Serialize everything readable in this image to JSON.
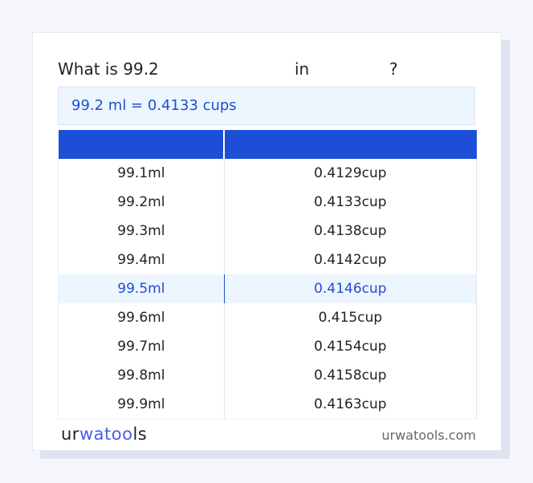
{
  "title": {
    "prefix": "What is 99.2",
    "middle": "in",
    "suffix": "?"
  },
  "summary": "99.2 ml = 0.4133 cups",
  "table": {
    "headers": [
      "",
      ""
    ],
    "rows": [
      [
        "99.1ml",
        "0.4129cup"
      ],
      [
        "99.2ml",
        "0.4133cup"
      ],
      [
        "99.3ml",
        "0.4138cup"
      ],
      [
        "99.4ml",
        "0.4142cup"
      ],
      [
        "99.5ml",
        "0.4146cup"
      ],
      [
        "99.6ml",
        "0.415cup"
      ],
      [
        "99.7ml",
        "0.4154cup"
      ],
      [
        "99.8ml",
        "0.4158cup"
      ],
      [
        "99.9ml",
        "0.4163cup"
      ]
    ],
    "highlighted_row": 4
  },
  "footer": {
    "logo": "urwatools",
    "logo_parts": [
      "ur",
      "wa",
      "too",
      "ls"
    ],
    "site": "urwatools.com"
  },
  "colors": {
    "accent": "#1d4fd6",
    "highlight_bg": "#edf5ff",
    "link": "#1f4fcf"
  }
}
